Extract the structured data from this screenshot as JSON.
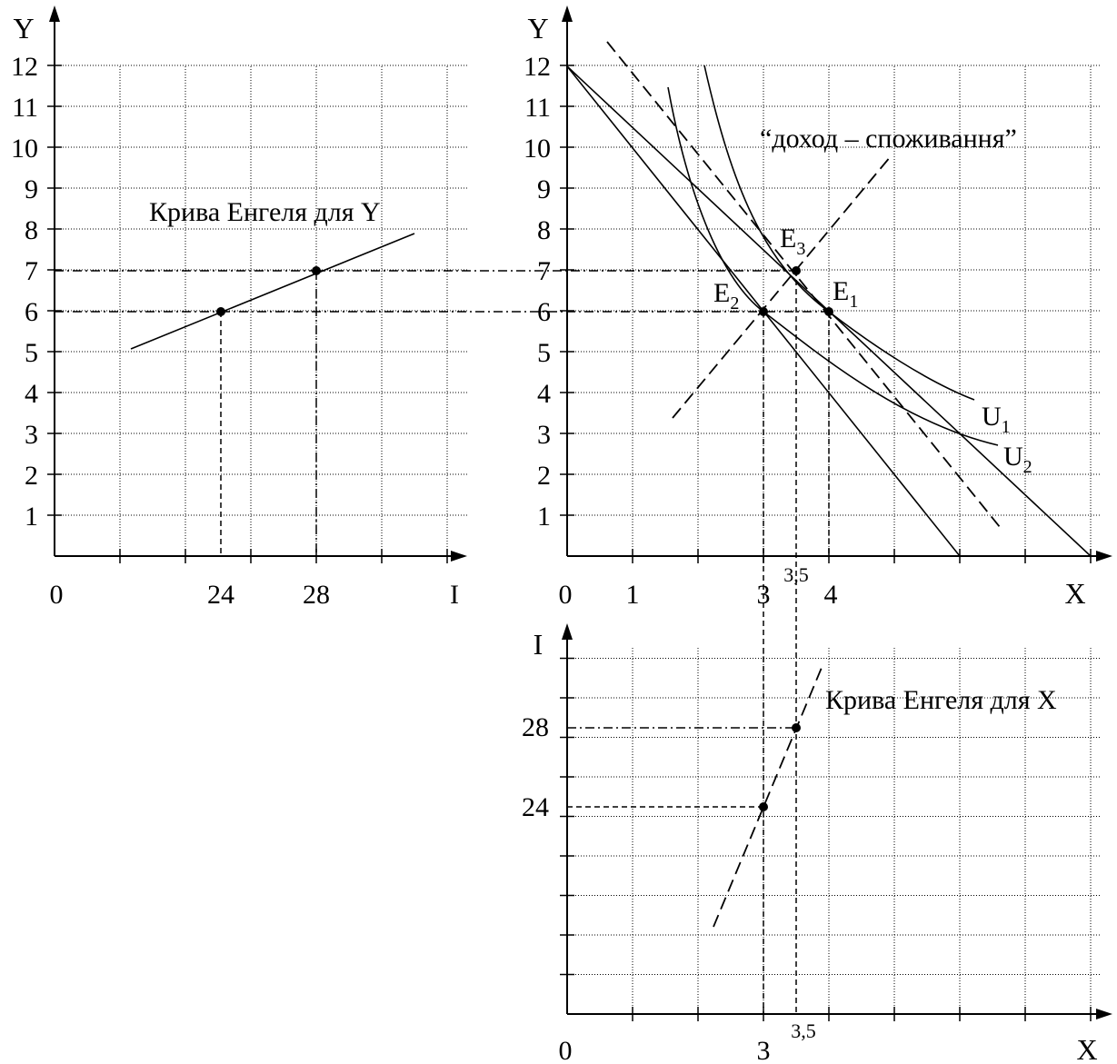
{
  "left_panel": {
    "y_axis_label": "Y",
    "x_axis_label": "I",
    "origin_label": "0",
    "y_ticks": [
      "1",
      "2",
      "3",
      "4",
      "5",
      "6",
      "7",
      "8",
      "9",
      "10",
      "11",
      "12"
    ],
    "x_tick_labels": [
      "24",
      "28"
    ],
    "curve_label": "Крива Енгеля для Y",
    "points": [
      {
        "I": 24,
        "Y": 6
      },
      {
        "I": 28,
        "Y": 7
      }
    ]
  },
  "right_panel": {
    "y_axis_label": "Y",
    "x_axis_label": "X",
    "origin_label": "0",
    "y_ticks": [
      "1",
      "2",
      "3",
      "4",
      "5",
      "6",
      "7",
      "8",
      "9",
      "10",
      "11",
      "12"
    ],
    "x_tick_labels": [
      "1",
      "3",
      "3,5",
      "4"
    ],
    "icc_label": "“доход – споживання”",
    "u1_label": "U",
    "u1_sub": "1",
    "u2_label": "U",
    "u2_sub": "2",
    "e1_label": "E",
    "e1_sub": "1",
    "e2_label": "E",
    "e2_sub": "2",
    "e3_label": "E",
    "e3_sub": "3",
    "points": [
      {
        "name": "E1",
        "X": 4,
        "Y": 6
      },
      {
        "name": "E2",
        "X": 3,
        "Y": 6
      },
      {
        "name": "E3",
        "X": 3.5,
        "Y": 7
      }
    ],
    "budget_lines": [
      {
        "x_intercept": 8,
        "y_intercept": 12
      },
      {
        "x_intercept": 6,
        "y_intercept": 12
      }
    ]
  },
  "bottom_panel": {
    "y_axis_label": "I",
    "x_axis_label": "X",
    "origin_label": "0",
    "y_tick_labels": [
      "24",
      "28"
    ],
    "x_tick_labels": [
      "3",
      "3,5"
    ],
    "curve_label": "Крива Енгеля для X",
    "points": [
      {
        "X": 3,
        "I": 24
      },
      {
        "X": 3.5,
        "I": 28
      }
    ]
  }
}
